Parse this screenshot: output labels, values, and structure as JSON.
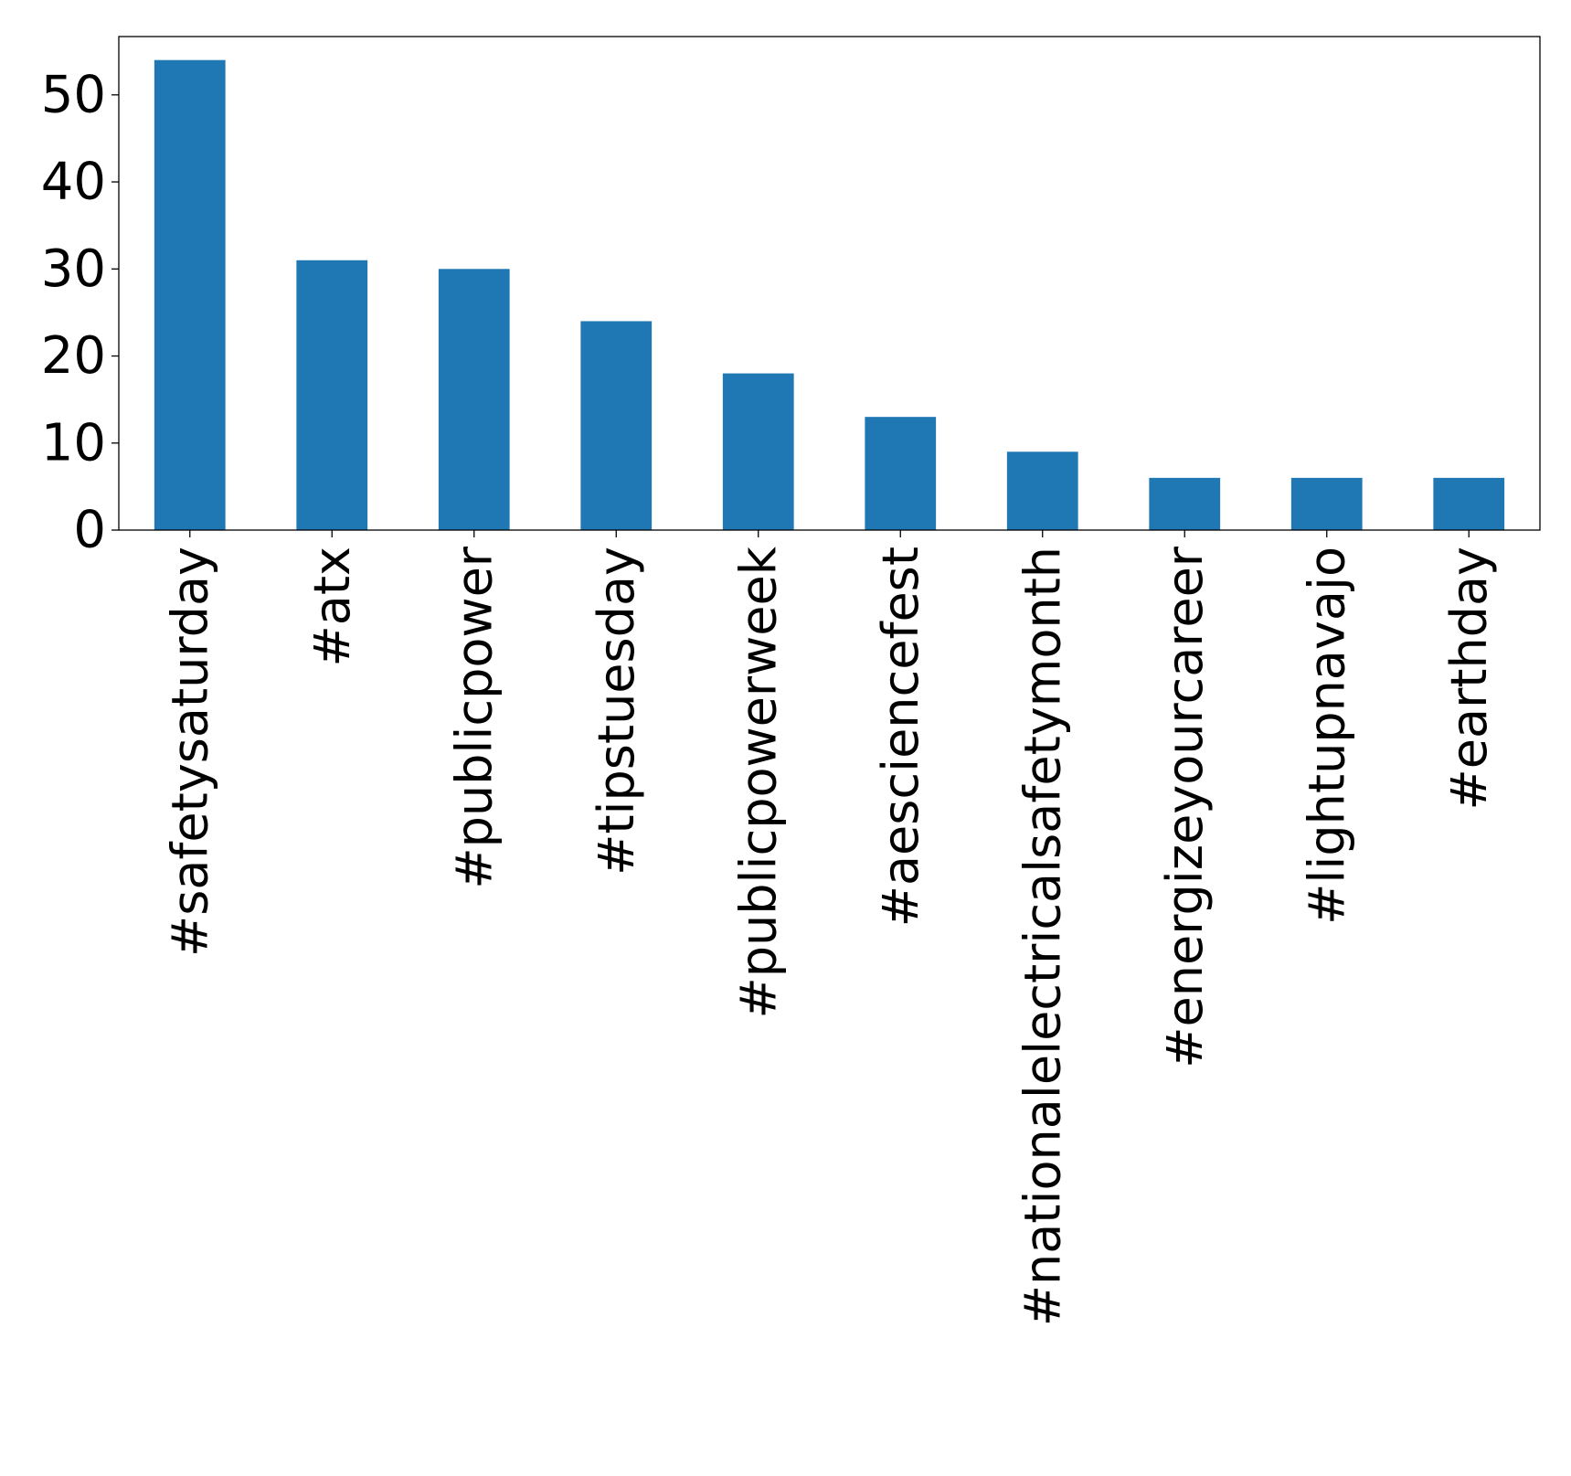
{
  "chart_data": {
    "type": "bar",
    "categories": [
      "#safetysaturday",
      "#atx",
      "#publicpower",
      "#tipstuesday",
      "#publicpowerweek",
      "#aesciencefest",
      "#nationalelectricalsafetymonth",
      "#energizeyourcareer",
      "#lightupnavajo",
      "#earthday"
    ],
    "values": [
      54,
      31,
      30,
      24,
      18,
      13,
      9,
      6,
      6,
      6
    ],
    "title": "",
    "xlabel": "",
    "ylabel": "",
    "ylim": [
      0,
      56.7
    ],
    "yticks": [
      0,
      10,
      20,
      30,
      40,
      50
    ],
    "grid": false,
    "bar_color": "#1f77b4"
  }
}
